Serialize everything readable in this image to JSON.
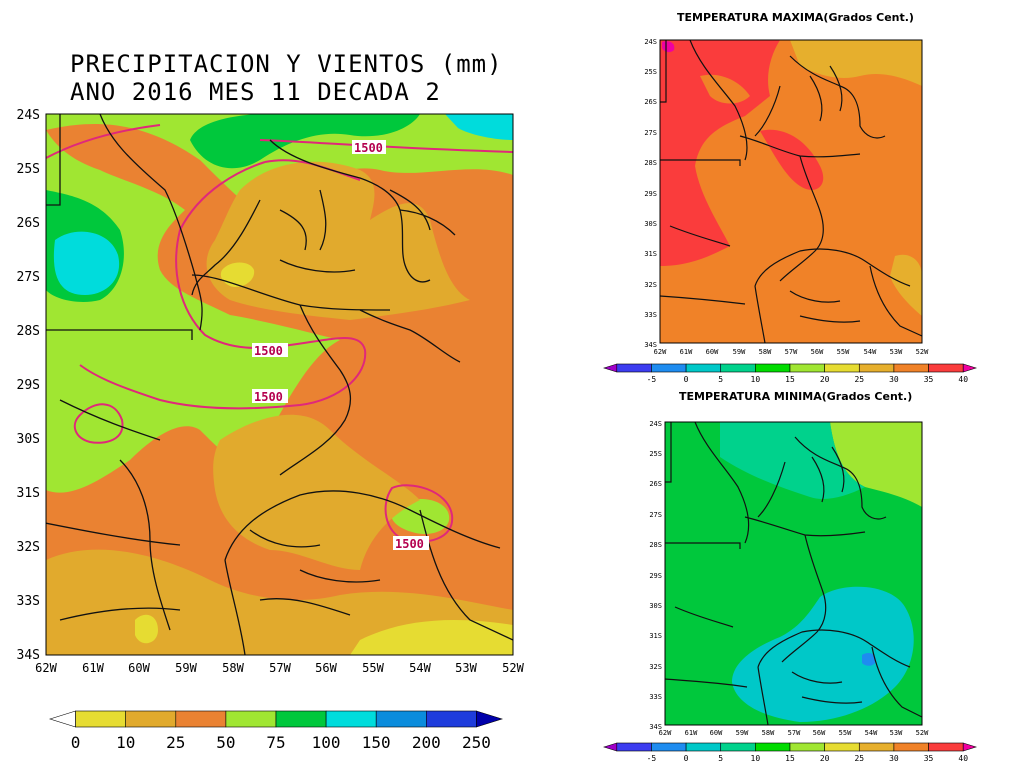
{
  "main_map": {
    "title_line1": "PRECIPITACION Y VIENTOS (mm)",
    "title_line2": "ANO 2016 MES 11 DECADA 2",
    "lat_labels": [
      "24S",
      "25S",
      "26S",
      "27S",
      "28S",
      "29S",
      "30S",
      "31S",
      "32S",
      "33S",
      "34S"
    ],
    "lon_labels": [
      "62W",
      "61W",
      "60W",
      "59W",
      "58W",
      "57W",
      "56W",
      "55W",
      "54W",
      "53W",
      "52W"
    ],
    "contour_labels": [
      "1500",
      "1500",
      "1500",
      "1500"
    ],
    "legend": {
      "values": [
        "0",
        "10",
        "25",
        "50",
        "75",
        "100",
        "150",
        "200",
        "250"
      ],
      "colors": [
        "#ffffff",
        "#e6dc32",
        "#e1aa2d",
        "#ea8232",
        "#a0e632",
        "#00c83c",
        "#00dcdc",
        "#0a8cdc",
        "#1e3cdc",
        "#0000aa"
      ]
    }
  },
  "tmax_map": {
    "title": "TEMPERATURA MAXIMA(Grados Cent.)",
    "lat_labels": [
      "24S",
      "25S",
      "26S",
      "27S",
      "28S",
      "29S",
      "30S",
      "31S",
      "32S",
      "33S",
      "34S"
    ],
    "lon_labels": [
      "62W",
      "61W",
      "60W",
      "59W",
      "58W",
      "57W",
      "56W",
      "55W",
      "54W",
      "53W",
      "52W"
    ],
    "legend": {
      "values": [
        "-5",
        "0",
        "5",
        "10",
        "15",
        "20",
        "25",
        "30",
        "35",
        "40"
      ],
      "colors": [
        "#a000c8",
        "#3c3cf0",
        "#1e8cf0",
        "#00c8c8",
        "#00d28c",
        "#00dc00",
        "#a0e632",
        "#e6dc32",
        "#e6af2d",
        "#f08228",
        "#fa3c3c",
        "#f000a0"
      ]
    }
  },
  "tmin_map": {
    "title": "TEMPERATURA MINIMA(Grados Cent.)",
    "lat_labels": [
      "24S",
      "25S",
      "26S",
      "27S",
      "28S",
      "29S",
      "30S",
      "31S",
      "32S",
      "33S",
      "34S"
    ],
    "lon_labels": [
      "62W",
      "61W",
      "60W",
      "59W",
      "58W",
      "57W",
      "56W",
      "55W",
      "54W",
      "53W",
      "52W"
    ],
    "legend": {
      "values": [
        "-5",
        "0",
        "5",
        "10",
        "15",
        "20",
        "25",
        "30",
        "35",
        "40"
      ],
      "colors": [
        "#a000c8",
        "#3c3cf0",
        "#1e8cf0",
        "#00c8c8",
        "#00d28c",
        "#00dc00",
        "#a0e632",
        "#e6dc32",
        "#e6af2d",
        "#f08228",
        "#fa3c3c",
        "#f000a0"
      ]
    }
  }
}
